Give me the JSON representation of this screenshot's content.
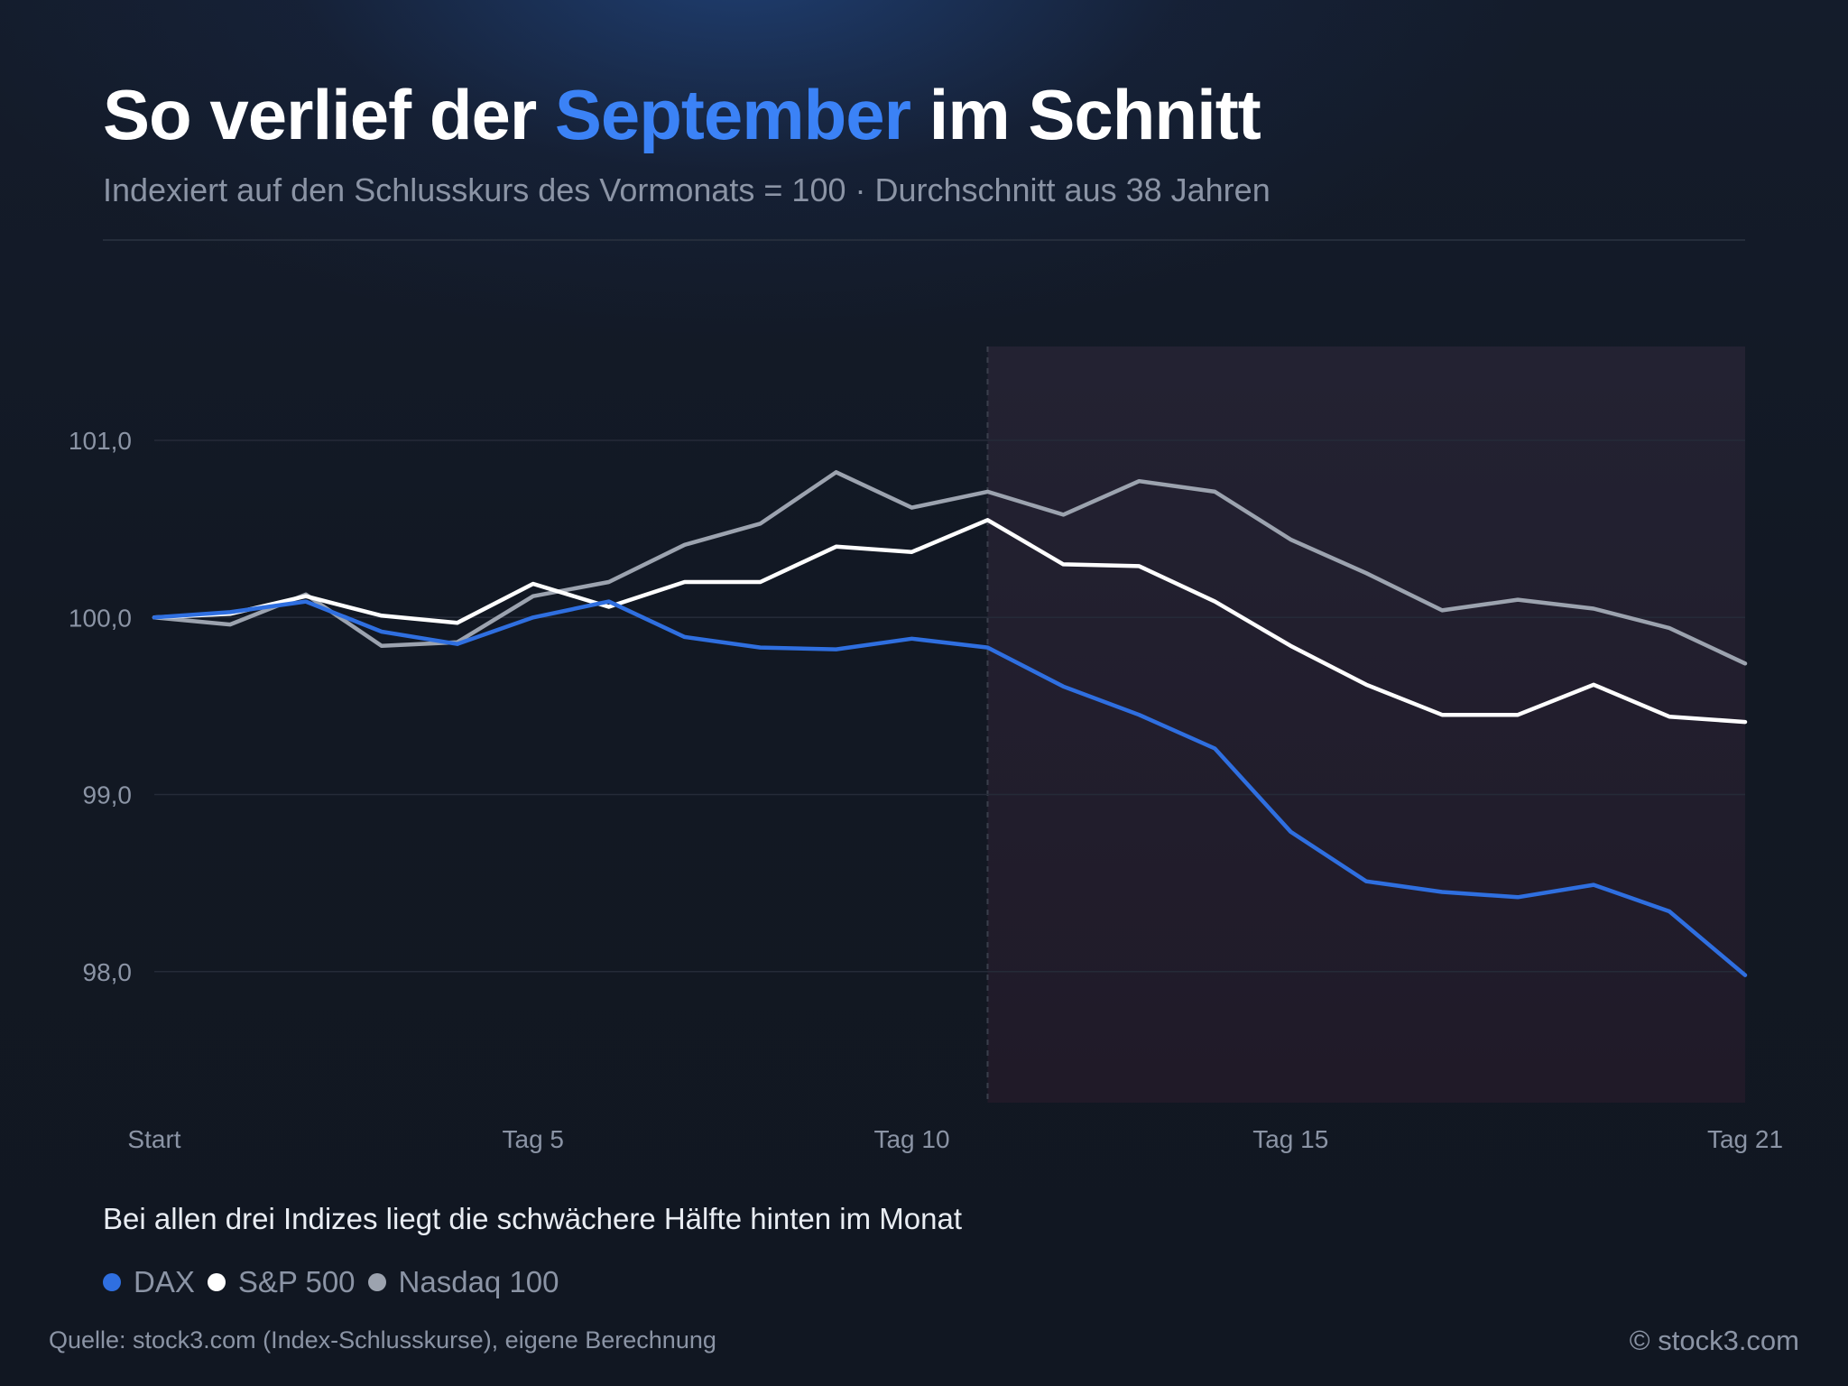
{
  "header": {
    "title_before": "So verlief der ",
    "title_accent": "September",
    "title_after": " im Schnitt",
    "subtitle": "Indexiert auf den Schlusskurs des Vormonats = 100 · Durchschnitt aus 38 Jahren"
  },
  "footer": {
    "note": "Bei allen drei Indizes liegt die schwächere Hälfte hinten im Monat",
    "source": "Quelle: stock3.com (Index-Schlusskurse), eigene Berechnung",
    "copyright": "© stock3.com"
  },
  "colors": {
    "accent": "#3b82f6",
    "highlight_region": "#2a1e2a"
  },
  "chart_data": {
    "type": "line",
    "title": "So verlief der September im Schnitt",
    "subtitle": "Indexiert auf den Schlusskurs des Vormonats = 100 · Durchschnitt aus 38 Jahren",
    "xlabel": "",
    "ylabel": "",
    "x": [
      0,
      1,
      2,
      3,
      4,
      5,
      6,
      7,
      8,
      9,
      10,
      11,
      12,
      13,
      14,
      15,
      16,
      17,
      18,
      19,
      20,
      21
    ],
    "x_ticks": [
      {
        "value": 0,
        "label": "Start"
      },
      {
        "value": 5,
        "label": "Tag 5"
      },
      {
        "value": 10,
        "label": "Tag 10"
      },
      {
        "value": 15,
        "label": "Tag 15"
      },
      {
        "value": 21,
        "label": "Tag 21"
      }
    ],
    "y_ticks": [
      {
        "value": 98,
        "label": "98,0"
      },
      {
        "value": 99,
        "label": "99,0"
      },
      {
        "value": 100,
        "label": "100,0"
      },
      {
        "value": 101,
        "label": "101,0"
      }
    ],
    "xlim": [
      0,
      21
    ],
    "ylim": [
      97.26,
      101.53
    ],
    "grid": "horizontal",
    "highlight_region": {
      "from": 11,
      "to": 21
    },
    "legend_position": "bottom-left",
    "series": [
      {
        "name": "DAX",
        "color": "#2f6fe0",
        "values": [
          100.0,
          100.03,
          100.09,
          99.92,
          99.85,
          100.0,
          100.09,
          99.89,
          99.83,
          99.82,
          99.88,
          99.83,
          99.61,
          99.45,
          99.26,
          98.79,
          98.51,
          98.45,
          98.42,
          98.49,
          98.34,
          97.98
        ]
      },
      {
        "name": "S&P 500",
        "color": "#ffffff",
        "values": [
          100.0,
          100.02,
          100.12,
          100.01,
          99.97,
          100.19,
          100.06,
          100.2,
          100.2,
          100.4,
          100.37,
          100.55,
          100.3,
          100.29,
          100.09,
          99.84,
          99.62,
          99.45,
          99.45,
          99.62,
          99.44,
          99.41
        ]
      },
      {
        "name": "Nasdaq 100",
        "color": "#9ca3af",
        "values": [
          100.0,
          99.96,
          100.13,
          99.84,
          99.86,
          100.12,
          100.2,
          100.41,
          100.53,
          100.82,
          100.62,
          100.71,
          100.58,
          100.77,
          100.71,
          100.44,
          100.25,
          100.04,
          100.1,
          100.05,
          99.94,
          99.74
        ]
      }
    ]
  }
}
